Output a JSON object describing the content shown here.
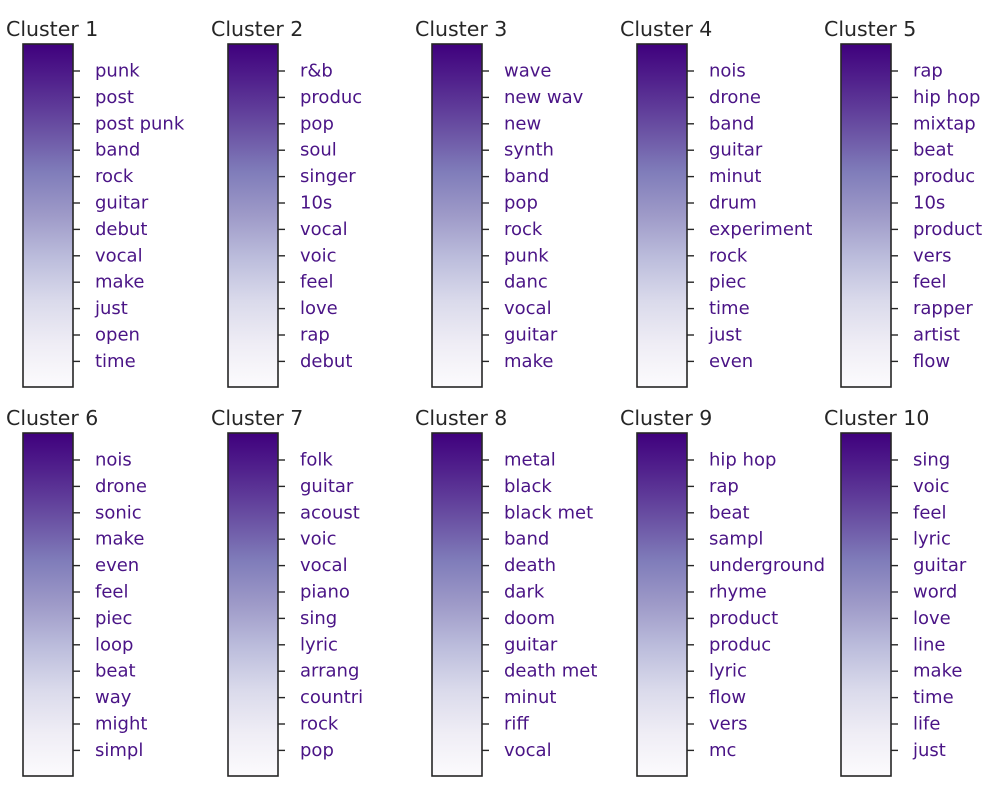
{
  "chart_data": [
    {
      "type": "colorbar",
      "title": "Cluster 1",
      "terms": [
        "punk",
        "post",
        "post punk",
        "band",
        "rock",
        "guitar",
        "debut",
        "vocal",
        "make",
        "just",
        "open",
        "time"
      ]
    },
    {
      "type": "colorbar",
      "title": "Cluster 2",
      "terms": [
        "r&b",
        "produc",
        "pop",
        "soul",
        "singer",
        "10s",
        "vocal",
        "voic",
        "feel",
        "love",
        "rap",
        "debut"
      ]
    },
    {
      "type": "colorbar",
      "title": "Cluster 3",
      "terms": [
        "wave",
        "new wav",
        "new",
        "synth",
        "band",
        "pop",
        "rock",
        "punk",
        "danc",
        "vocal",
        "guitar",
        "make"
      ]
    },
    {
      "type": "colorbar",
      "title": "Cluster 4",
      "terms": [
        "nois",
        "drone",
        "band",
        "guitar",
        "minut",
        "drum",
        "experiment",
        "rock",
        "piec",
        "time",
        "just",
        "even"
      ]
    },
    {
      "type": "colorbar",
      "title": "Cluster 5",
      "terms": [
        "rap",
        "hip hop",
        "mixtap",
        "beat",
        "produc",
        "10s",
        "product",
        "vers",
        "feel",
        "rapper",
        "artist",
        "flow"
      ]
    },
    {
      "type": "colorbar",
      "title": "Cluster 6",
      "terms": [
        "nois",
        "drone",
        "sonic",
        "make",
        "even",
        "feel",
        "piec",
        "loop",
        "beat",
        "way",
        "might",
        "simpl"
      ]
    },
    {
      "type": "colorbar",
      "title": "Cluster 7",
      "terms": [
        "folk",
        "guitar",
        "acoust",
        "voic",
        "vocal",
        "piano",
        "sing",
        "lyric",
        "arrang",
        "countri",
        "rock",
        "pop"
      ]
    },
    {
      "type": "colorbar",
      "title": "Cluster 8",
      "terms": [
        "metal",
        "black",
        "black met",
        "band",
        "death",
        "dark",
        "doom",
        "guitar",
        "death met",
        "minut",
        "riff",
        "vocal"
      ]
    },
    {
      "type": "colorbar",
      "title": "Cluster 9",
      "terms": [
        "hip hop",
        "rap",
        "beat",
        "sampl",
        "underground",
        "rhyme",
        "product",
        "produc",
        "lyric",
        "flow",
        "vers",
        "mc"
      ]
    },
    {
      "type": "colorbar",
      "title": "Cluster 10",
      "terms": [
        "sing",
        "voic",
        "feel",
        "lyric",
        "guitar",
        "word",
        "love",
        "line",
        "make",
        "time",
        "life",
        "just"
      ]
    }
  ],
  "colors": {
    "gradient": [
      "#3f007d",
      "#54278f",
      "#6a51a3",
      "#807dba",
      "#9e9ac8",
      "#bcbddc",
      "#dadaeb",
      "#efedf5",
      "#fcfbfd"
    ],
    "label": "#4a1486",
    "title": "#262626",
    "frame": "#262626"
  }
}
